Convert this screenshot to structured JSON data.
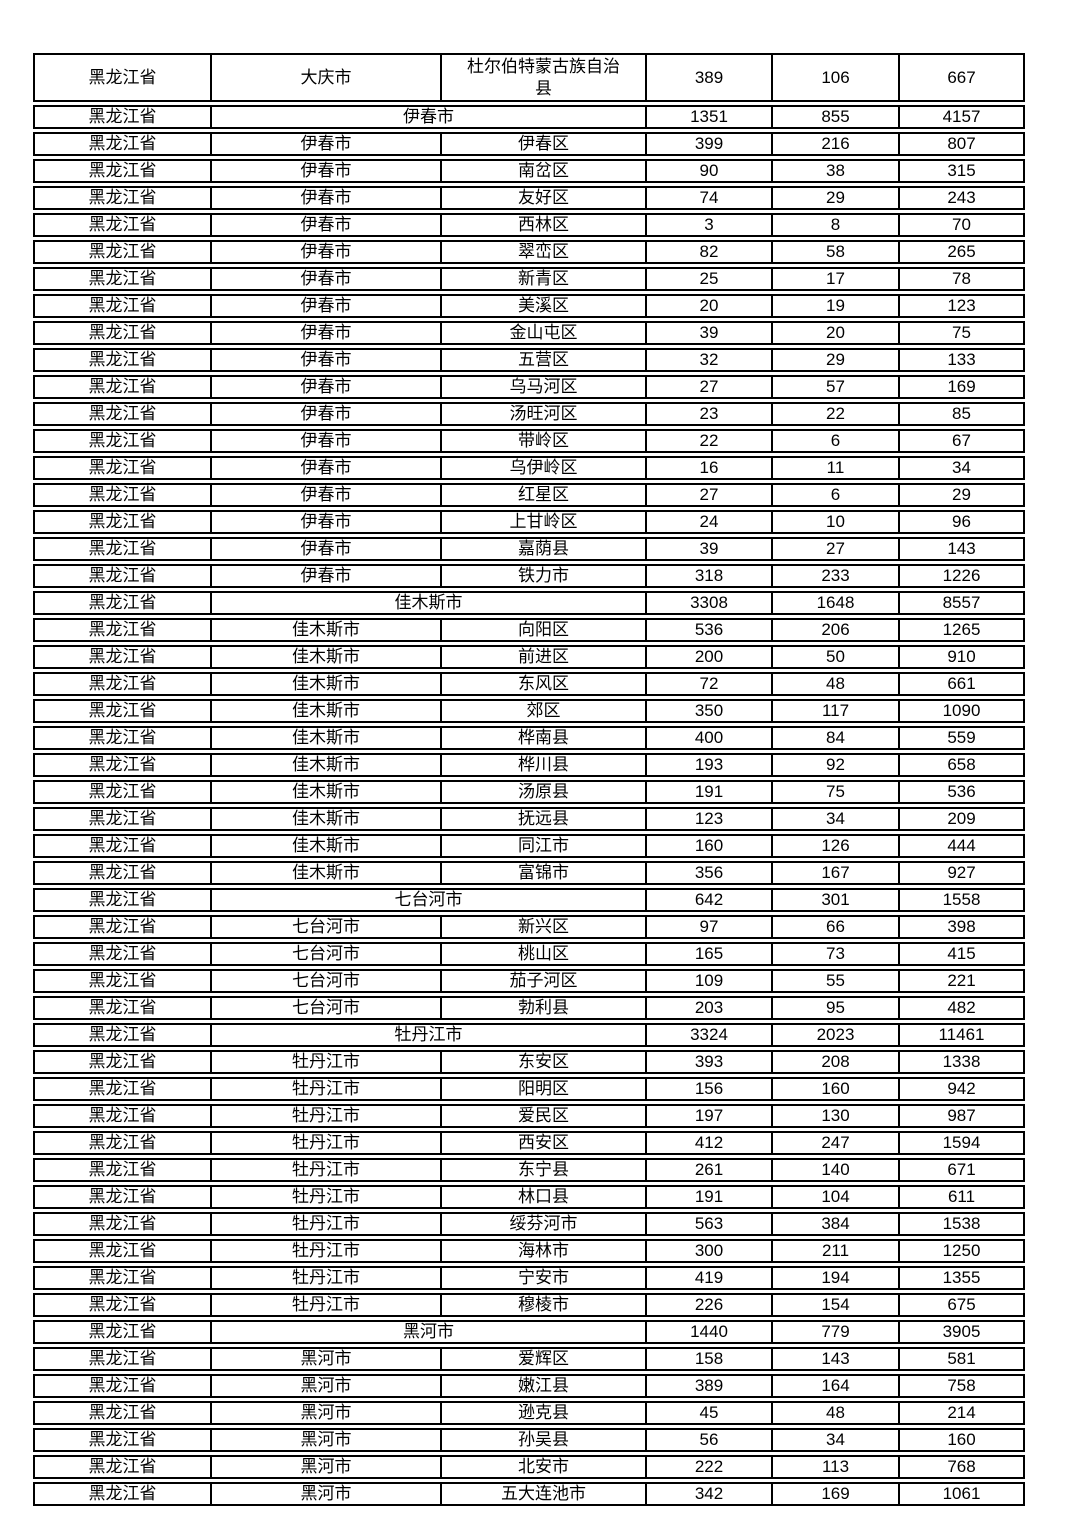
{
  "colors": {
    "background": "#ffffff",
    "border": "#000000",
    "text": "#000000"
  },
  "table": {
    "rows": [
      {
        "province": "黑龙江省",
        "city": "大庆市",
        "district": "杜尔伯特蒙古族自治县",
        "values": [
          "389",
          "106",
          "667"
        ],
        "city_span": false,
        "tall": true
      },
      {
        "province": "黑龙江省",
        "city": "伊春市",
        "district": "",
        "values": [
          "1351",
          "855",
          "4157"
        ],
        "city_span": true,
        "tall": false
      },
      {
        "province": "黑龙江省",
        "city": "伊春市",
        "district": "伊春区",
        "values": [
          "399",
          "216",
          "807"
        ],
        "city_span": false,
        "tall": false
      },
      {
        "province": "黑龙江省",
        "city": "伊春市",
        "district": "南岔区",
        "values": [
          "90",
          "38",
          "315"
        ],
        "city_span": false,
        "tall": false
      },
      {
        "province": "黑龙江省",
        "city": "伊春市",
        "district": "友好区",
        "values": [
          "74",
          "29",
          "243"
        ],
        "city_span": false,
        "tall": false
      },
      {
        "province": "黑龙江省",
        "city": "伊春市",
        "district": "西林区",
        "values": [
          "3",
          "8",
          "70"
        ],
        "city_span": false,
        "tall": false
      },
      {
        "province": "黑龙江省",
        "city": "伊春市",
        "district": "翠峦区",
        "values": [
          "82",
          "58",
          "265"
        ],
        "city_span": false,
        "tall": false
      },
      {
        "province": "黑龙江省",
        "city": "伊春市",
        "district": "新青区",
        "values": [
          "25",
          "17",
          "78"
        ],
        "city_span": false,
        "tall": false
      },
      {
        "province": "黑龙江省",
        "city": "伊春市",
        "district": "美溪区",
        "values": [
          "20",
          "19",
          "123"
        ],
        "city_span": false,
        "tall": false
      },
      {
        "province": "黑龙江省",
        "city": "伊春市",
        "district": "金山屯区",
        "values": [
          "39",
          "20",
          "75"
        ],
        "city_span": false,
        "tall": false
      },
      {
        "province": "黑龙江省",
        "city": "伊春市",
        "district": "五营区",
        "values": [
          "32",
          "29",
          "133"
        ],
        "city_span": false,
        "tall": false
      },
      {
        "province": "黑龙江省",
        "city": "伊春市",
        "district": "乌马河区",
        "values": [
          "27",
          "57",
          "169"
        ],
        "city_span": false,
        "tall": false
      },
      {
        "province": "黑龙江省",
        "city": "伊春市",
        "district": "汤旺河区",
        "values": [
          "23",
          "22",
          "85"
        ],
        "city_span": false,
        "tall": false
      },
      {
        "province": "黑龙江省",
        "city": "伊春市",
        "district": "带岭区",
        "values": [
          "22",
          "6",
          "67"
        ],
        "city_span": false,
        "tall": false
      },
      {
        "province": "黑龙江省",
        "city": "伊春市",
        "district": "乌伊岭区",
        "values": [
          "16",
          "11",
          "34"
        ],
        "city_span": false,
        "tall": false
      },
      {
        "province": "黑龙江省",
        "city": "伊春市",
        "district": "红星区",
        "values": [
          "27",
          "6",
          "29"
        ],
        "city_span": false,
        "tall": false
      },
      {
        "province": "黑龙江省",
        "city": "伊春市",
        "district": "上甘岭区",
        "values": [
          "24",
          "10",
          "96"
        ],
        "city_span": false,
        "tall": false
      },
      {
        "province": "黑龙江省",
        "city": "伊春市",
        "district": "嘉荫县",
        "values": [
          "39",
          "27",
          "143"
        ],
        "city_span": false,
        "tall": false
      },
      {
        "province": "黑龙江省",
        "city": "伊春市",
        "district": "铁力市",
        "values": [
          "318",
          "233",
          "1226"
        ],
        "city_span": false,
        "tall": false
      },
      {
        "province": "黑龙江省",
        "city": "佳木斯市",
        "district": "",
        "values": [
          "3308",
          "1648",
          "8557"
        ],
        "city_span": true,
        "tall": false
      },
      {
        "province": "黑龙江省",
        "city": "佳木斯市",
        "district": "向阳区",
        "values": [
          "536",
          "206",
          "1265"
        ],
        "city_span": false,
        "tall": false
      },
      {
        "province": "黑龙江省",
        "city": "佳木斯市",
        "district": "前进区",
        "values": [
          "200",
          "50",
          "910"
        ],
        "city_span": false,
        "tall": false
      },
      {
        "province": "黑龙江省",
        "city": "佳木斯市",
        "district": "东风区",
        "values": [
          "72",
          "48",
          "661"
        ],
        "city_span": false,
        "tall": false
      },
      {
        "province": "黑龙江省",
        "city": "佳木斯市",
        "district": "郊区",
        "values": [
          "350",
          "117",
          "1090"
        ],
        "city_span": false,
        "tall": false
      },
      {
        "province": "黑龙江省",
        "city": "佳木斯市",
        "district": "桦南县",
        "values": [
          "400",
          "84",
          "559"
        ],
        "city_span": false,
        "tall": false
      },
      {
        "province": "黑龙江省",
        "city": "佳木斯市",
        "district": "桦川县",
        "values": [
          "193",
          "92",
          "658"
        ],
        "city_span": false,
        "tall": false
      },
      {
        "province": "黑龙江省",
        "city": "佳木斯市",
        "district": "汤原县",
        "values": [
          "191",
          "75",
          "536"
        ],
        "city_span": false,
        "tall": false
      },
      {
        "province": "黑龙江省",
        "city": "佳木斯市",
        "district": "抚远县",
        "values": [
          "123",
          "34",
          "209"
        ],
        "city_span": false,
        "tall": false
      },
      {
        "province": "黑龙江省",
        "city": "佳木斯市",
        "district": "同江市",
        "values": [
          "160",
          "126",
          "444"
        ],
        "city_span": false,
        "tall": false
      },
      {
        "province": "黑龙江省",
        "city": "佳木斯市",
        "district": "富锦市",
        "values": [
          "356",
          "167",
          "927"
        ],
        "city_span": false,
        "tall": false
      },
      {
        "province": "黑龙江省",
        "city": "七台河市",
        "district": "",
        "values": [
          "642",
          "301",
          "1558"
        ],
        "city_span": true,
        "tall": false
      },
      {
        "province": "黑龙江省",
        "city": "七台河市",
        "district": "新兴区",
        "values": [
          "97",
          "66",
          "398"
        ],
        "city_span": false,
        "tall": false
      },
      {
        "province": "黑龙江省",
        "city": "七台河市",
        "district": "桃山区",
        "values": [
          "165",
          "73",
          "415"
        ],
        "city_span": false,
        "tall": false
      },
      {
        "province": "黑龙江省",
        "city": "七台河市",
        "district": "茄子河区",
        "values": [
          "109",
          "55",
          "221"
        ],
        "city_span": false,
        "tall": false
      },
      {
        "province": "黑龙江省",
        "city": "七台河市",
        "district": "勃利县",
        "values": [
          "203",
          "95",
          "482"
        ],
        "city_span": false,
        "tall": false
      },
      {
        "province": "黑龙江省",
        "city": "牡丹江市",
        "district": "",
        "values": [
          "3324",
          "2023",
          "11461"
        ],
        "city_span": true,
        "tall": false
      },
      {
        "province": "黑龙江省",
        "city": "牡丹江市",
        "district": "东安区",
        "values": [
          "393",
          "208",
          "1338"
        ],
        "city_span": false,
        "tall": false
      },
      {
        "province": "黑龙江省",
        "city": "牡丹江市",
        "district": "阳明区",
        "values": [
          "156",
          "160",
          "942"
        ],
        "city_span": false,
        "tall": false
      },
      {
        "province": "黑龙江省",
        "city": "牡丹江市",
        "district": "爱民区",
        "values": [
          "197",
          "130",
          "987"
        ],
        "city_span": false,
        "tall": false
      },
      {
        "province": "黑龙江省",
        "city": "牡丹江市",
        "district": "西安区",
        "values": [
          "412",
          "247",
          "1594"
        ],
        "city_span": false,
        "tall": false
      },
      {
        "province": "黑龙江省",
        "city": "牡丹江市",
        "district": "东宁县",
        "values": [
          "261",
          "140",
          "671"
        ],
        "city_span": false,
        "tall": false
      },
      {
        "province": "黑龙江省",
        "city": "牡丹江市",
        "district": "林口县",
        "values": [
          "191",
          "104",
          "611"
        ],
        "city_span": false,
        "tall": false
      },
      {
        "province": "黑龙江省",
        "city": "牡丹江市",
        "district": "绥芬河市",
        "values": [
          "563",
          "384",
          "1538"
        ],
        "city_span": false,
        "tall": false
      },
      {
        "province": "黑龙江省",
        "city": "牡丹江市",
        "district": "海林市",
        "values": [
          "300",
          "211",
          "1250"
        ],
        "city_span": false,
        "tall": false
      },
      {
        "province": "黑龙江省",
        "city": "牡丹江市",
        "district": "宁安市",
        "values": [
          "419",
          "194",
          "1355"
        ],
        "city_span": false,
        "tall": false
      },
      {
        "province": "黑龙江省",
        "city": "牡丹江市",
        "district": "穆棱市",
        "values": [
          "226",
          "154",
          "675"
        ],
        "city_span": false,
        "tall": false
      },
      {
        "province": "黑龙江省",
        "city": "黑河市",
        "district": "",
        "values": [
          "1440",
          "779",
          "3905"
        ],
        "city_span": true,
        "tall": false
      },
      {
        "province": "黑龙江省",
        "city": "黑河市",
        "district": "爱辉区",
        "values": [
          "158",
          "143",
          "581"
        ],
        "city_span": false,
        "tall": false
      },
      {
        "province": "黑龙江省",
        "city": "黑河市",
        "district": "嫩江县",
        "values": [
          "389",
          "164",
          "758"
        ],
        "city_span": false,
        "tall": false
      },
      {
        "province": "黑龙江省",
        "city": "黑河市",
        "district": "逊克县",
        "values": [
          "45",
          "48",
          "214"
        ],
        "city_span": false,
        "tall": false
      },
      {
        "province": "黑龙江省",
        "city": "黑河市",
        "district": "孙吴县",
        "values": [
          "56",
          "34",
          "160"
        ],
        "city_span": false,
        "tall": false
      },
      {
        "province": "黑龙江省",
        "city": "黑河市",
        "district": "北安市",
        "values": [
          "222",
          "113",
          "768"
        ],
        "city_span": false,
        "tall": false
      },
      {
        "province": "黑龙江省",
        "city": "黑河市",
        "district": "五大连池市",
        "values": [
          "342",
          "169",
          "1061"
        ],
        "city_span": false,
        "tall": false
      }
    ]
  }
}
